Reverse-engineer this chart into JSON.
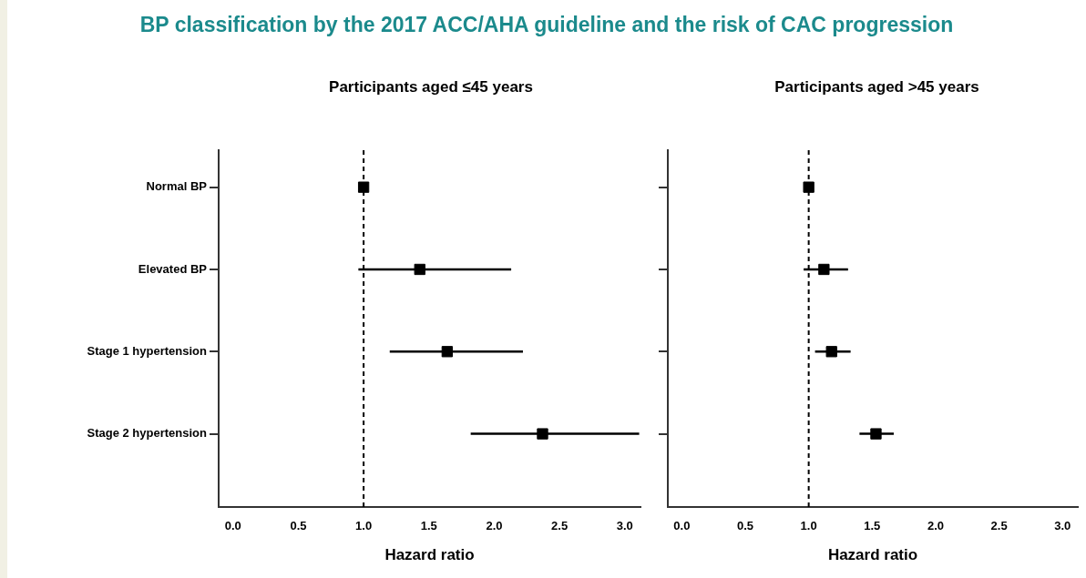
{
  "chart_data": [
    {
      "type": "scatter",
      "orientation": "horizontal",
      "title": "BP classification by the 2017 ACC/AHA guideline and the risk of CAC progression",
      "subtitle": "Participants aged ≤45 years",
      "xlabel": "Hazard ratio",
      "categories": [
        "Normal BP",
        "Elevated BP",
        "Stage 1 hypertension",
        "Stage 2 hypertension"
      ],
      "values": [
        1.0,
        1.43,
        1.64,
        2.37
      ],
      "errors": [
        null,
        [
          0.96,
          2.13
        ],
        [
          1.2,
          2.22
        ],
        [
          1.82,
          3.11
        ]
      ],
      "color": "#000000",
      "marker": "square",
      "xlim": [
        -0.11,
        3.12
      ],
      "xticks": [
        {
          "value": 0,
          "label": "0.0"
        },
        {
          "value": 0.5,
          "label": "0.5"
        },
        {
          "value": 1,
          "label": "1.0"
        },
        {
          "value": 1.5,
          "label": "1.5"
        },
        {
          "value": 2,
          "label": "2.0"
        },
        {
          "value": 2.5,
          "label": "2.5"
        },
        {
          "value": 3,
          "label": "3.0"
        }
      ],
      "ref_lines": [
        {
          "axis": "x",
          "value": 1,
          "line_style": "dashed",
          "color": "#000000"
        }
      ],
      "grid": false,
      "legend": false
    },
    {
      "type": "scatter",
      "orientation": "horizontal",
      "subtitle": "Participants aged >45 years",
      "xlabel": "Hazard ratio",
      "categories": [
        null,
        null,
        null,
        null
      ],
      "values": [
        1.0,
        1.12,
        1.18,
        1.53
      ],
      "errors": [
        null,
        [
          0.96,
          1.31
        ],
        [
          1.05,
          1.33
        ],
        [
          1.4,
          1.67
        ]
      ],
      "color": "#000000",
      "marker": "square",
      "xlim": [
        -0.11,
        3.12
      ],
      "xticks": [
        {
          "value": 0,
          "label": "0.0"
        },
        {
          "value": 0.5,
          "label": "0.5"
        },
        {
          "value": 1,
          "label": "1.0"
        },
        {
          "value": 1.5,
          "label": "1.5"
        },
        {
          "value": 2,
          "label": "2.0"
        },
        {
          "value": 2.5,
          "label": "2.5"
        },
        {
          "value": 3,
          "label": "3.0"
        }
      ],
      "ref_lines": [
        {
          "axis": "x",
          "value": 1,
          "line_style": "dashed",
          "color": "#000000"
        }
      ],
      "grid": false,
      "legend": false,
      "tick_labels": "x"
    }
  ]
}
